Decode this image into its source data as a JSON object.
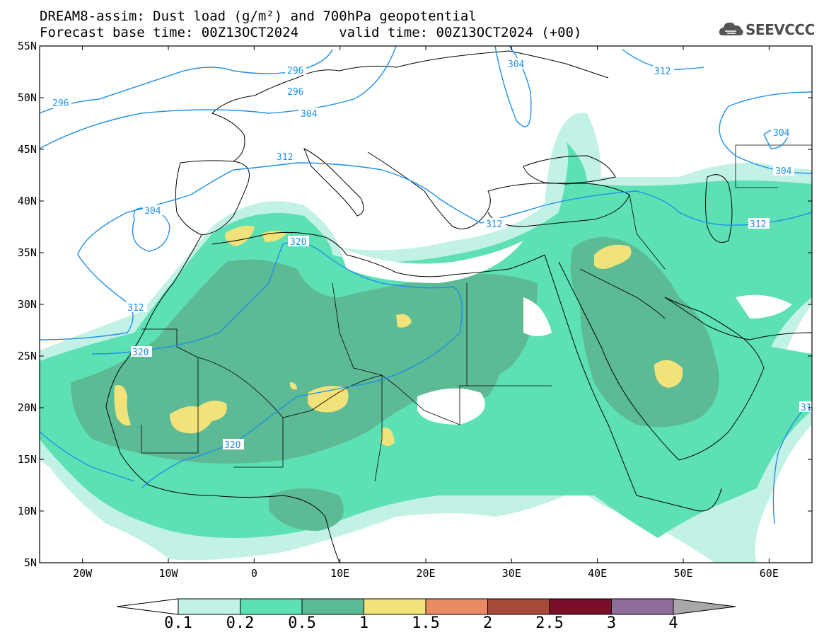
{
  "header": {
    "title_line1": "DREAM8-assim: Dust load (g/m²) and 700hPa geopotential",
    "title_line2": "Forecast base time: 00Z13OCT2024     valid time: 00Z13OCT2024 (+00)"
  },
  "logo": {
    "text": "SEEVCCC",
    "icon": "cloud-logo-icon"
  },
  "map": {
    "lon_range": [
      -25,
      65
    ],
    "lat_range": [
      5,
      55
    ],
    "lat_labels": [
      "55N",
      "50N",
      "45N",
      "40N",
      "35N",
      "30N",
      "25N",
      "20N",
      "15N",
      "10N",
      "5N"
    ],
    "lon_labels": [
      "20W",
      "10W",
      "0",
      "10E",
      "20E",
      "30E",
      "40E",
      "50E",
      "60E"
    ],
    "contour_labels": [
      "296",
      "296",
      "296",
      "304",
      "304",
      "304",
      "304",
      "304",
      "312",
      "312",
      "312",
      "312",
      "312",
      "320",
      "320",
      "320",
      "31"
    ]
  },
  "colorbar": {
    "labels": [
      "0.1",
      "0.2",
      "0.5",
      "1",
      "1.5",
      "2",
      "2.5",
      "3",
      "4"
    ],
    "colors": [
      "#c2f1e6",
      "#5ee0b5",
      "#5cba95",
      "#f2e27a",
      "#e88c66",
      "#a84a39",
      "#7a0f2a",
      "#8e6d9e"
    ],
    "under_color": "#ffffff",
    "over_color": "#a8a8a8"
  },
  "colors": {
    "contour": "#1e90e8",
    "dust_light": "#c2f1e6",
    "dust_mid": "#5ee0b5",
    "dust_dark": "#5cba95",
    "dust_yellow": "#f2e27a"
  }
}
